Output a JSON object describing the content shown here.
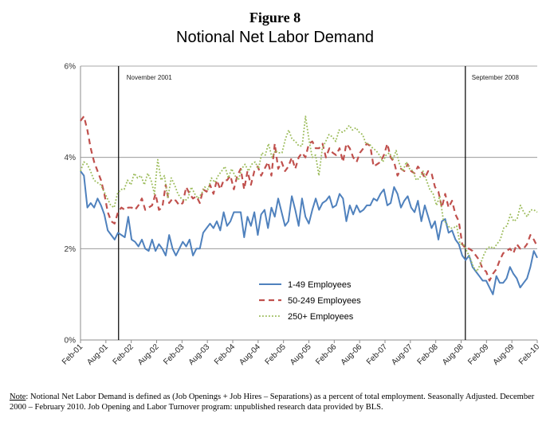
{
  "figure": {
    "label": "Figure 8",
    "title": "Notional Net Labor Demand"
  },
  "note": {
    "key": "Note",
    "text": ":  Notional Net Labor Demand is defined as (Job Openings + Job Hires – Separations) as a percent of total employment. Seasonally Adjusted. December 2000 – February 2010. Job Opening and Labor Turnover program: unpublished research data provided by BLS."
  },
  "chart_data": {
    "type": "line",
    "title": "Notional Net Labor Demand",
    "xlabel": "",
    "ylabel": "",
    "x_tick_labels": [
      "Feb-01",
      "Aug-01",
      "Feb-02",
      "Aug-02",
      "Feb-03",
      "Aug-03",
      "Feb-04",
      "Aug-04",
      "Feb-05",
      "Aug-05",
      "Feb-06",
      "Aug-06",
      "Feb-07",
      "Aug-07",
      "Feb-08",
      "Aug-08",
      "Feb-09",
      "Aug-09",
      "Feb-10"
    ],
    "y_tick_labels": [
      "0%",
      "2%",
      "4%",
      "6%"
    ],
    "ylim": [
      0,
      6
    ],
    "grid": true,
    "legend_position": "bottom-center",
    "x_start": "Feb-01",
    "x_end": "Feb-10",
    "annotations": [
      {
        "text": "November 2001",
        "x": "Nov-01"
      },
      {
        "text": "September 2008",
        "x": "Sep-08"
      }
    ],
    "series": [
      {
        "name": "1-49 Employees",
        "color": "#4f81bd",
        "values": [
          3.7,
          3.6,
          2.9,
          3.0,
          2.9,
          3.1,
          2.95,
          2.75,
          2.4,
          2.3,
          2.2,
          2.35,
          2.3,
          2.25,
          2.7,
          2.2,
          2.15,
          2.05,
          2.2,
          2.0,
          1.95,
          2.2,
          1.95,
          2.1,
          2.0,
          1.85,
          2.3,
          2.0,
          1.85,
          2.0,
          2.15,
          2.05,
          2.2,
          1.85,
          2.0,
          2.0,
          2.35,
          2.45,
          2.55,
          2.45,
          2.6,
          2.4,
          2.8,
          2.5,
          2.6,
          2.8,
          2.8,
          2.8,
          2.25,
          2.7,
          2.5,
          2.8,
          2.3,
          2.75,
          2.85,
          2.45,
          2.9,
          2.7,
          3.1,
          2.8,
          2.5,
          2.6,
          3.15,
          2.85,
          2.5,
          3.1,
          2.7,
          2.55,
          2.85,
          3.1,
          2.85,
          3.0,
          3.05,
          3.15,
          2.9,
          2.95,
          3.2,
          3.1,
          2.6,
          2.95,
          2.75,
          2.95,
          2.8,
          2.85,
          2.95,
          2.95,
          3.1,
          3.05,
          3.2,
          3.3,
          2.95,
          3.0,
          3.35,
          3.2,
          2.9,
          3.05,
          3.15,
          2.9,
          2.8,
          3.05,
          2.6,
          2.95,
          2.7,
          2.45,
          2.6,
          2.2,
          2.6,
          2.65,
          2.35,
          2.4,
          2.2,
          2.1,
          1.85,
          1.75,
          1.85,
          1.6,
          1.5,
          1.4,
          1.3,
          1.3,
          1.15,
          1.0,
          1.4,
          1.25,
          1.25,
          1.35,
          1.6,
          1.45,
          1.35,
          1.15,
          1.25,
          1.35,
          1.6,
          1.95,
          1.8
        ]
      },
      {
        "name": "50-249 Employees",
        "color": "#c0504d",
        "values": [
          4.8,
          4.9,
          4.6,
          4.2,
          3.9,
          3.7,
          3.5,
          3.2,
          2.8,
          2.6,
          2.55,
          2.8,
          2.9,
          2.85,
          2.9,
          2.9,
          2.85,
          2.95,
          3.1,
          2.85,
          2.9,
          2.95,
          3.2,
          2.85,
          2.9,
          3.4,
          3.0,
          3.1,
          3.05,
          2.95,
          3.0,
          3.35,
          3.2,
          3.1,
          3.15,
          3.0,
          3.3,
          3.25,
          3.4,
          3.2,
          3.5,
          3.3,
          3.5,
          3.5,
          3.6,
          3.3,
          3.6,
          3.75,
          3.3,
          3.7,
          3.4,
          3.7,
          3.8,
          3.6,
          3.75,
          3.9,
          3.6,
          4.3,
          3.75,
          3.9,
          3.7,
          3.8,
          4.0,
          3.75,
          4.0,
          4.1,
          4.0,
          4.3,
          4.35,
          4.2,
          4.2,
          4.3,
          4.0,
          4.2,
          4.1,
          4.05,
          4.2,
          3.9,
          4.3,
          4.2,
          4.0,
          3.9,
          4.1,
          4.2,
          4.3,
          4.25,
          3.8,
          3.85,
          3.9,
          4.05,
          4.3,
          4.0,
          3.9,
          3.6,
          3.75,
          3.7,
          3.85,
          3.7,
          3.65,
          3.8,
          3.7,
          3.55,
          3.7,
          3.65,
          3.35,
          3.25,
          2.9,
          3.2,
          2.9,
          3.05,
          2.75,
          2.6,
          2.1,
          2.0,
          2.0,
          1.95,
          1.85,
          1.75,
          1.55,
          1.5,
          1.3,
          1.45,
          1.55,
          1.75,
          1.9,
          1.95,
          2.0,
          1.9,
          2.1,
          2.0,
          2.0,
          2.1,
          2.3,
          2.2,
          2.05
        ]
      },
      {
        "name": "250+ Employees",
        "color": "#9bbb59",
        "values": [
          3.7,
          3.9,
          3.85,
          3.7,
          3.5,
          3.45,
          3.4,
          3.25,
          3.1,
          2.95,
          2.9,
          3.2,
          3.3,
          3.3,
          3.5,
          3.4,
          3.65,
          3.55,
          3.6,
          3.4,
          3.65,
          3.5,
          3.2,
          3.95,
          3.5,
          3.6,
          3.1,
          3.55,
          3.4,
          3.2,
          3.1,
          3.05,
          3.1,
          3.35,
          3.2,
          3.1,
          3.2,
          3.35,
          3.3,
          3.55,
          3.45,
          3.6,
          3.7,
          3.8,
          3.55,
          3.75,
          3.6,
          3.5,
          3.75,
          3.85,
          3.7,
          3.85,
          3.9,
          3.75,
          4.1,
          4.05,
          4.3,
          4.0,
          4.15,
          4.1,
          4.1,
          4.4,
          4.6,
          4.4,
          4.35,
          4.25,
          4.25,
          4.9,
          4.4,
          4.0,
          4.05,
          3.6,
          4.2,
          4.35,
          4.5,
          4.45,
          4.35,
          4.6,
          4.55,
          4.6,
          4.7,
          4.6,
          4.65,
          4.55,
          4.5,
          4.3,
          4.3,
          4.2,
          4.15,
          4.05,
          3.9,
          4.05,
          4.1,
          3.95,
          4.15,
          3.85,
          3.7,
          3.9,
          3.75,
          3.7,
          3.5,
          3.55,
          3.7,
          3.5,
          3.3,
          3.2,
          2.95,
          3.15,
          2.65,
          2.55,
          2.45,
          2.45,
          2.5,
          2.1,
          2.1,
          1.95,
          1.8,
          1.6,
          1.5,
          1.65,
          1.85,
          2.0,
          2.05,
          2.0,
          2.1,
          2.2,
          2.45,
          2.5,
          2.75,
          2.6,
          2.65,
          2.95,
          2.8,
          2.7,
          2.85,
          2.85,
          2.8
        ]
      }
    ]
  }
}
